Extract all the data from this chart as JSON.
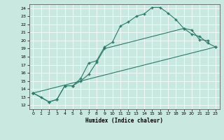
{
  "xlabel": "Humidex (Indice chaleur)",
  "bg_color": "#c8e8e0",
  "line_color": "#2d7a6a",
  "xlim": [
    -0.5,
    23.5
  ],
  "ylim": [
    11.5,
    24.5
  ],
  "xticks": [
    0,
    1,
    2,
    3,
    4,
    5,
    6,
    7,
    8,
    9,
    10,
    11,
    12,
    13,
    14,
    15,
    16,
    17,
    18,
    19,
    20,
    21,
    22,
    23
  ],
  "yticks": [
    12,
    13,
    14,
    15,
    16,
    17,
    18,
    19,
    20,
    21,
    22,
    23,
    24
  ],
  "line1_x": [
    0,
    1,
    2,
    3,
    4,
    5,
    6,
    7,
    8,
    9,
    10,
    11,
    12,
    13,
    14,
    15,
    16,
    17,
    18,
    19,
    20,
    21,
    22,
    23
  ],
  "line1_y": [
    13.5,
    13.0,
    12.4,
    12.7,
    14.4,
    14.4,
    15.3,
    17.2,
    17.5,
    19.2,
    19.8,
    21.8,
    22.3,
    23.0,
    23.3,
    24.1,
    24.1,
    23.4,
    22.6,
    21.5,
    20.8,
    20.5,
    19.7,
    19.2
  ],
  "line2_x": [
    0,
    2,
    3,
    4,
    5,
    6,
    7,
    8,
    9,
    19,
    20,
    21,
    22
  ],
  "line2_y": [
    13.5,
    12.4,
    12.7,
    14.4,
    14.4,
    15.0,
    15.8,
    17.3,
    19.0,
    21.5,
    21.3,
    20.1,
    20.0
  ],
  "line3_x": [
    0,
    23
  ],
  "line3_y": [
    13.5,
    19.2
  ],
  "figsize": [
    3.2,
    2.0
  ],
  "dpi": 100
}
